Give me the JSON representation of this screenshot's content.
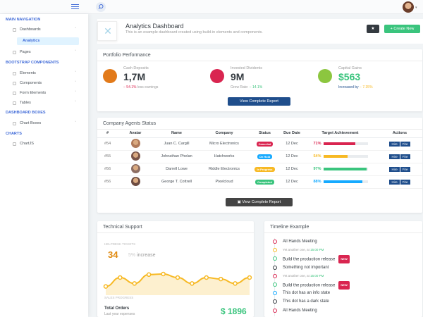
{
  "sidebar": {
    "sections": [
      {
        "title": "Main Navigation"
      },
      {
        "title": "Bootstrap Components"
      },
      {
        "title": "Dashboard Boxes"
      },
      {
        "title": "Charts"
      }
    ],
    "items": [
      {
        "label": "Dashboards"
      },
      {
        "label": "Analytics"
      },
      {
        "label": "Pages"
      },
      {
        "label": "Elements"
      },
      {
        "label": "Components"
      },
      {
        "label": "Form Elements"
      },
      {
        "label": "Tables"
      },
      {
        "label": "Chart Boxes"
      },
      {
        "label": "ChartJS"
      }
    ]
  },
  "page_title": {
    "title": "Analytics Dashboard",
    "subtitle": "This is an example dashboard created using build-in elements and components.",
    "create_label": "Create New"
  },
  "portfolio": {
    "header": "Portfolio Performance",
    "stats": [
      {
        "label": "Cash Deposits",
        "value": "1,7M",
        "trend": "− 54.1%",
        "note": "less earnings",
        "color": "#f7b924"
      },
      {
        "label": "Invested Dividents",
        "value": "9M",
        "trend_label": "Grow Rate:",
        "trend": "− 14.1%",
        "color": "#d92550"
      },
      {
        "label": "Capital Gains",
        "value": "$563",
        "trend_label": "Increased by",
        "trend": "− 7.35%",
        "color": "#3ac47d"
      }
    ],
    "report_button": "View Complete Report"
  },
  "agents": {
    "header": "Company Agents Status",
    "columns": [
      "#",
      "Avatar",
      "Name",
      "Company",
      "Status",
      "Due Date",
      "Target Achievement",
      "Actions"
    ],
    "rows": [
      {
        "id": "#54",
        "name": "Juan C. Cargill",
        "company": "Micro Electronics",
        "status": "Canceled",
        "status_color": "#d92550",
        "due": "12 Dec",
        "pct": "71%",
        "pct_value": 0.71,
        "bar_color": "#d92550"
      },
      {
        "id": "#55",
        "name": "Johnathan Phelan",
        "company": "Hatchworks",
        "status": "On Hold",
        "status_color": "#16aaff",
        "due": "12 Dec",
        "pct": "54%",
        "pct_value": 0.54,
        "bar_color": "#f7b924"
      },
      {
        "id": "#56",
        "name": "Darrell Lowe",
        "company": "Riddle Electronics",
        "status": "In Progress",
        "status_color": "#f7b924",
        "due": "12 Dec",
        "pct": "97%",
        "pct_value": 0.97,
        "bar_color": "#3ac47d"
      },
      {
        "id": "#56",
        "name": "George T. Cottrell",
        "company": "Pixelcloud",
        "status": "Completed",
        "status_color": "#3ac47d",
        "due": "12 Dec",
        "pct": "88%",
        "pct_value": 0.88,
        "bar_color": "#16aaff"
      }
    ],
    "action_hire": "Hire",
    "action_fire": "Fire",
    "report_button": "View Complete Report"
  },
  "support": {
    "header": "Technical Support",
    "helpdesk_label": "HELPDESK TICKETS",
    "big_value": "34",
    "change": "5%",
    "change_label": "increase",
    "sales_label": "SALES PROGRESS",
    "total_label": "Total Orders",
    "total_sub": "Last year expenses",
    "total_value": "$ 1896"
  },
  "chart_data": {
    "type": "area",
    "y": [
      0.2,
      0.5,
      0.3,
      0.6,
      0.62,
      0.5,
      0.3,
      0.5,
      0.45,
      0.3,
      0.5
    ],
    "color": "#f7b924"
  },
  "timeline": {
    "header": "Timeline Example",
    "items": [
      {
        "text": "All Hands Meeting",
        "color": "#d92550",
        "small": false,
        "new": false
      },
      {
        "text": "Yet another one, at ",
        "time": "15:00 PM",
        "color": "#f7b924",
        "small": true,
        "new": false
      },
      {
        "text": "Build the production release",
        "color": "#3ac47d",
        "small": false,
        "new": true
      },
      {
        "text": "Something not important",
        "color": "#343a40",
        "small": false,
        "new": false
      },
      {
        "text": "Yet another one, at ",
        "time": "15:00 PM",
        "color": "#d92550",
        "small": true,
        "new": false
      },
      {
        "text": "Build the production release",
        "color": "#3ac47d",
        "small": false,
        "new": true
      },
      {
        "text": "This dot has an info state",
        "color": "#16aaff",
        "small": false,
        "new": false
      },
      {
        "text": "This dot has a dark state",
        "color": "#343a40",
        "small": false,
        "new": false
      },
      {
        "text": "All Hands Meeting",
        "color": "#d92550",
        "small": false,
        "new": false
      }
    ],
    "new_label": "NEW"
  }
}
